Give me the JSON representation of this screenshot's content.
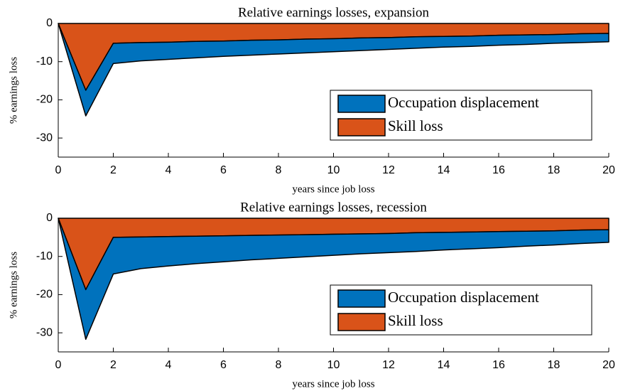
{
  "chart_data": [
    {
      "type": "area",
      "title": "Relative earnings losses, expansion",
      "x_label": "years since job loss",
      "y_label": "% earnings loss",
      "x": [
        0,
        1,
        2,
        3,
        4,
        5,
        6,
        7,
        8,
        9,
        10,
        11,
        12,
        13,
        14,
        15,
        16,
        17,
        18,
        19,
        20
      ],
      "series": [
        {
          "name": "Occupation displacement",
          "color": "#0072bd",
          "values": [
            0,
            -6.7,
            -5.3,
            -4.8,
            -4.5,
            -4.3,
            -4.0,
            -3.9,
            -3.7,
            -3.6,
            -3.4,
            -3.3,
            -3.1,
            -3.0,
            -2.8,
            -2.7,
            -2.6,
            -2.5,
            -2.3,
            -2.3,
            -2.2
          ]
        },
        {
          "name": "Skill loss",
          "color": "#d95319",
          "values": [
            0,
            -17.5,
            -5.2,
            -5.0,
            -4.9,
            -4.7,
            -4.6,
            -4.4,
            -4.3,
            -4.1,
            -4.0,
            -3.8,
            -3.7,
            -3.5,
            -3.4,
            -3.3,
            -3.1,
            -3.0,
            -2.9,
            -2.7,
            -2.6
          ]
        }
      ],
      "stacked": true,
      "legend": "southeast",
      "xlim": [
        0,
        20
      ],
      "xticks": [
        0,
        2,
        4,
        6,
        8,
        10,
        12,
        14,
        16,
        18,
        20
      ],
      "ylim": [
        -35,
        0
      ],
      "yticks": [
        0,
        -10,
        -20,
        -30
      ]
    },
    {
      "type": "area",
      "title": "Relative earnings losses, recession",
      "x_label": "years since job loss",
      "y_label": "% earnings loss",
      "x": [
        0,
        1,
        2,
        3,
        4,
        5,
        6,
        7,
        8,
        9,
        10,
        11,
        12,
        13,
        14,
        15,
        16,
        17,
        18,
        19,
        20
      ],
      "series": [
        {
          "name": "Occupation displacement",
          "color": "#0072bd",
          "values": [
            0,
            -13.0,
            -9.6,
            -8.3,
            -7.7,
            -7.2,
            -6.8,
            -6.4,
            -6.1,
            -5.8,
            -5.5,
            -5.2,
            -5.0,
            -4.9,
            -4.6,
            -4.4,
            -4.2,
            -3.9,
            -3.7,
            -3.5,
            -3.3
          ]
        },
        {
          "name": "Skill loss",
          "color": "#d95319",
          "values": [
            0,
            -18.7,
            -5.0,
            -4.9,
            -4.8,
            -4.7,
            -4.6,
            -4.5,
            -4.4,
            -4.3,
            -4.2,
            -4.1,
            -4.0,
            -3.8,
            -3.7,
            -3.6,
            -3.5,
            -3.4,
            -3.3,
            -3.1,
            -3.0
          ]
        }
      ],
      "stacked": true,
      "legend": "southeast",
      "xlim": [
        0,
        20
      ],
      "xticks": [
        0,
        2,
        4,
        6,
        8,
        10,
        12,
        14,
        16,
        18,
        20
      ],
      "ylim": [
        -35,
        0
      ],
      "yticks": [
        0,
        -10,
        -20,
        -30
      ]
    }
  ]
}
